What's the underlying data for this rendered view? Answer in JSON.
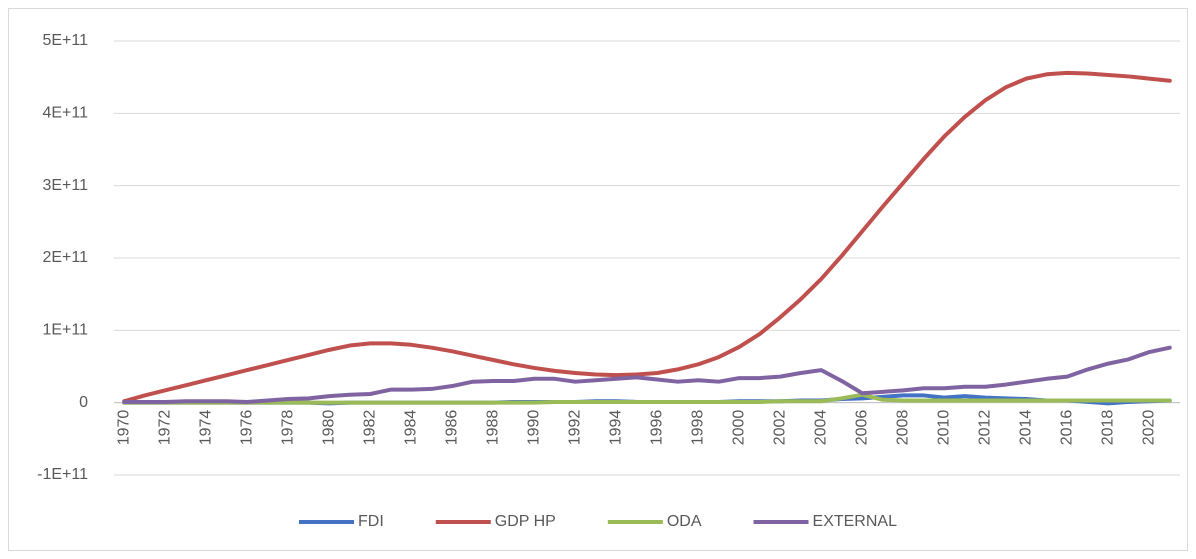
{
  "chart_data": {
    "type": "line",
    "categories": [
      "1970",
      null,
      "1972",
      null,
      "1974",
      null,
      "1976",
      null,
      "1978",
      null,
      "1980",
      null,
      "1982",
      null,
      "1984",
      null,
      "1986",
      null,
      "1988",
      null,
      "1990",
      null,
      "1992",
      null,
      "1994",
      null,
      "1996",
      null,
      "1998",
      null,
      "2000",
      null,
      "2002",
      null,
      "2004",
      null,
      "2006",
      null,
      "2008",
      null,
      "2010",
      null,
      "2012",
      null,
      "2014",
      null,
      "2016",
      null,
      "2018",
      null,
      "2020",
      null
    ],
    "series": [
      {
        "name": "FDI",
        "color": "#4472c4",
        "values": [
          0,
          0,
          0,
          0,
          0,
          0,
          0,
          0,
          0,
          0,
          -1000000000.0,
          0,
          0,
          0,
          0,
          0,
          0,
          0,
          0,
          1000000000.0,
          1000000000.0,
          1000000000.0,
          1000000000.0,
          2000000000.0,
          2000000000.0,
          1000000000.0,
          1000000000.0,
          1000000000.0,
          1000000000.0,
          1000000000.0,
          2000000000.0,
          2000000000.0,
          2000000000.0,
          3000000000.0,
          3000000000.0,
          5000000000.0,
          6000000000.0,
          8000000000.0,
          10000000000.0,
          10000000000.0,
          7000000000.0,
          9000000000.0,
          7000000000.0,
          6000000000.0,
          5000000000.0,
          3000000000.0,
          3000000000.0,
          1000000000.0,
          -1000000000.0,
          1000000000.0,
          2000000000.0,
          3000000000.0
        ]
      },
      {
        "name": "GDP HP",
        "color": "#c0504d",
        "values": [
          2000000000.0,
          10000000000.0,
          17000000000.0,
          24000000000.0,
          31000000000.0,
          38000000000.0,
          45000000000.0,
          52000000000.0,
          59000000000.0,
          66000000000.0,
          73000000000.0,
          79000000000.0,
          82000000000.0,
          82000000000.0,
          80000000000.0,
          76000000000.0,
          71000000000.0,
          65000000000.0,
          59000000000.0,
          53000000000.0,
          48000000000.0,
          44000000000.0,
          41000000000.0,
          39000000000.0,
          38000000000.0,
          39000000000.0,
          41000000000.0,
          46000000000.0,
          53000000000.0,
          63000000000.0,
          77000000000.0,
          95000000000.0,
          118000000000.0,
          143000000000.0,
          171000000000.0,
          203000000000.0,
          237000000000.0,
          271000000000.0,
          304000000000.0,
          337000000000.0,
          368000000000.0,
          395000000000.0,
          418000000000.0,
          436000000000.0,
          448000000000.0,
          454000000000.0,
          456000000000.0,
          455000000000.0,
          453000000000.0,
          451000000000.0,
          448000000000.0,
          445000000000.0
        ]
      },
      {
        "name": "ODA",
        "color": "#9bbb59",
        "values": [
          0,
          0,
          0,
          0,
          0,
          0,
          0,
          0,
          0,
          0,
          0,
          0,
          0,
          0,
          0,
          0,
          0,
          0,
          0,
          0,
          0,
          1000000000.0,
          1000000000.0,
          1000000000.0,
          1000000000.0,
          1000000000.0,
          1000000000.0,
          1000000000.0,
          1000000000.0,
          1000000000.0,
          1000000000.0,
          1000000000.0,
          2000000000.0,
          2000000000.0,
          2000000000.0,
          6000000000.0,
          11000000000.0,
          4000000000.0,
          3000000000.0,
          3000000000.0,
          3000000000.0,
          3000000000.0,
          3000000000.0,
          3000000000.0,
          3000000000.0,
          3000000000.0,
          3000000000.0,
          3000000000.0,
          3000000000.0,
          3000000000.0,
          3000000000.0,
          3000000000.0
        ]
      },
      {
        "name": "EXTERNAL",
        "color": "#8064a2",
        "values": [
          1000000000.0,
          1000000000.0,
          1000000000.0,
          2000000000.0,
          2000000000.0,
          2000000000.0,
          1000000000.0,
          3000000000.0,
          5000000000.0,
          6000000000.0,
          9000000000.0,
          11000000000.0,
          12000000000.0,
          18000000000.0,
          18000000000.0,
          19000000000.0,
          23000000000.0,
          29000000000.0,
          30000000000.0,
          30000000000.0,
          33000000000.0,
          33000000000.0,
          29000000000.0,
          31000000000.0,
          33000000000.0,
          35000000000.0,
          32000000000.0,
          29000000000.0,
          31000000000.0,
          29000000000.0,
          34000000000.0,
          34000000000.0,
          36000000000.0,
          41000000000.0,
          45000000000.0,
          30000000000.0,
          13000000000.0,
          15000000000.0,
          17000000000.0,
          20000000000.0,
          20000000000.0,
          22000000000.0,
          22000000000.0,
          25000000000.0,
          29000000000.0,
          33000000000.0,
          36000000000.0,
          46000000000.0,
          54000000000.0,
          60000000000.0,
          70000000000.0,
          76000000000.0
        ]
      }
    ],
    "ylim": [
      -100000000000.0,
      500000000000.0
    ],
    "yticks": [
      {
        "value": -100000000000.0,
        "label": "-1E+11"
      },
      0,
      {
        "value": 100000000000.0,
        "label": "1E+11"
      },
      {
        "value": 200000000000.0,
        "label": "2E+11"
      },
      {
        "value": 300000000000.0,
        "label": "3E+11"
      },
      {
        "value": 400000000000.0,
        "label": "4E+11"
      },
      {
        "value": 500000000000.0,
        "label": "5E+11"
      }
    ],
    "grid": true,
    "legend": "bottom"
  }
}
